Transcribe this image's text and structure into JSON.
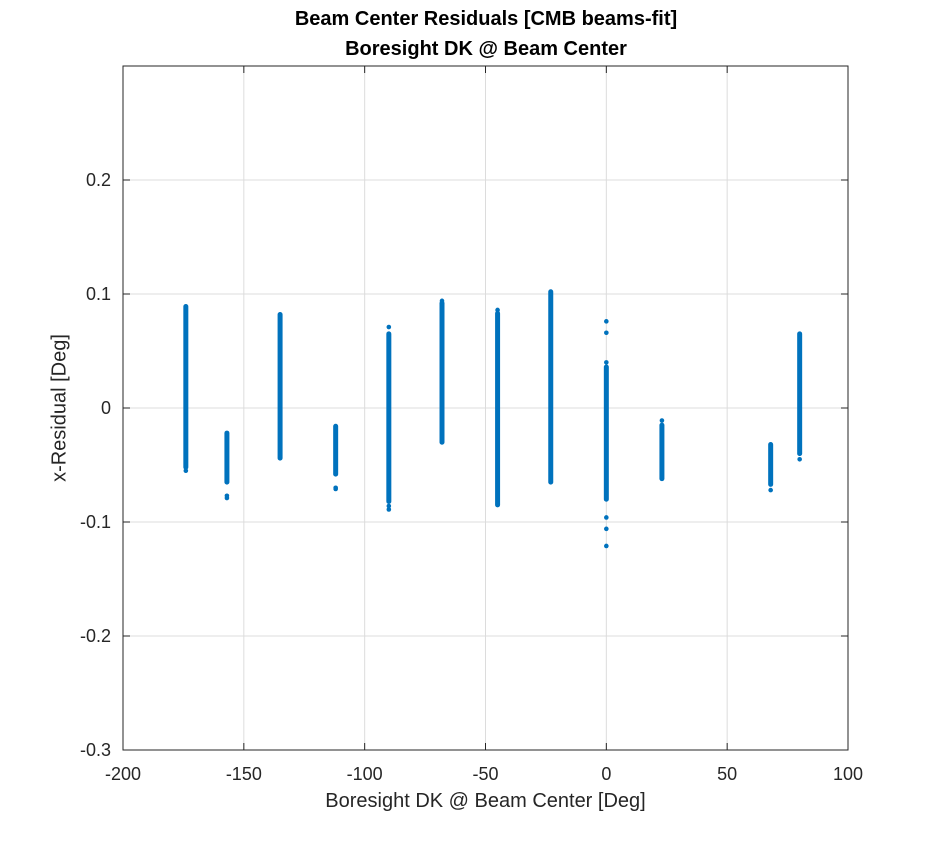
{
  "chart_data": {
    "type": "scatter",
    "title": [
      "Beam Center Residuals [CMB beams-fit]",
      "Boresight DK @ Beam Center"
    ],
    "xlabel": "Boresight DK @ Beam Center [Deg]",
    "ylabel": "x-Residual [Deg]",
    "xlim": [
      -200,
      100
    ],
    "ylim": [
      -0.3,
      0.3
    ],
    "xticks": [
      -200,
      -150,
      -100,
      -50,
      0,
      50,
      100
    ],
    "yticks": [
      -0.3,
      -0.2,
      -0.1,
      0,
      0.1,
      0.2
    ],
    "ytick_labels": [
      "-0.3",
      "-0.2",
      "-0.1",
      "0",
      "0.1",
      "0.2"
    ],
    "grid": true,
    "marker_color": "#0072BD",
    "groups": [
      {
        "x": -174,
        "y_min": -0.052,
        "y_max": 0.089,
        "outliers": [
          -0.055
        ]
      },
      {
        "x": -157,
        "y_min": -0.065,
        "y_max": -0.022,
        "outliers": [
          -0.077,
          -0.079
        ]
      },
      {
        "x": -135,
        "y_min": -0.044,
        "y_max": 0.082,
        "outliers": []
      },
      {
        "x": -112,
        "y_min": -0.058,
        "y_max": -0.016,
        "outliers": [
          -0.07,
          -0.071
        ]
      },
      {
        "x": -90,
        "y_min": -0.082,
        "y_max": 0.065,
        "outliers": [
          0.071,
          -0.086,
          -0.089
        ]
      },
      {
        "x": -68,
        "y_min": -0.03,
        "y_max": 0.092,
        "outliers": [
          0.094
        ]
      },
      {
        "x": -45,
        "y_min": -0.085,
        "y_max": 0.083,
        "outliers": [
          0.086
        ]
      },
      {
        "x": -23,
        "y_min": -0.065,
        "y_max": 0.102,
        "outliers": []
      },
      {
        "x": 0,
        "y_min": -0.08,
        "y_max": 0.036,
        "outliers": [
          0.076,
          0.066,
          0.04,
          -0.096,
          -0.106,
          -0.121
        ]
      },
      {
        "x": 23,
        "y_min": -0.062,
        "y_max": -0.015,
        "outliers": [
          -0.011
        ]
      },
      {
        "x": 68,
        "y_min": -0.067,
        "y_max": -0.032,
        "outliers": [
          -0.072
        ]
      },
      {
        "x": 80,
        "y_min": -0.04,
        "y_max": 0.065,
        "outliers": [
          -0.045
        ]
      }
    ]
  }
}
